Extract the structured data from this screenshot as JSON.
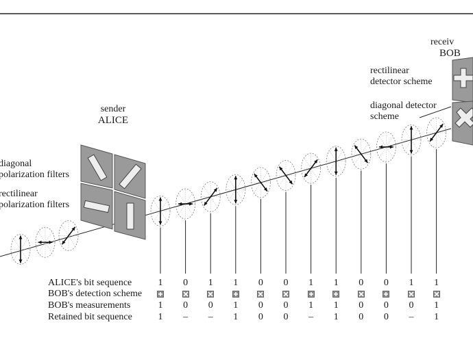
{
  "labels": {
    "sender": "sender",
    "alice": "ALICE",
    "receiver": "receiv",
    "bob": "BOB",
    "diag_filters_1": "diagonal",
    "diag_filters_2": "polarization filters",
    "rect_filters_1": "rectilinear",
    "rect_filters_2": "polarization filters",
    "rect_det_1": "rectilinear",
    "rect_det_2": "detector scheme",
    "diag_det_1": "diagonal detector",
    "diag_det_2": "scheme"
  },
  "table": {
    "row_labels": [
      "ALICE's bit sequence",
      "BOB's detection scheme",
      "BOB's measurements",
      "Retained bit sequence"
    ],
    "alice_bits": [
      "1",
      "0",
      "1",
      "1",
      "0",
      "0",
      "1",
      "1",
      "0",
      "0",
      "1",
      "1"
    ],
    "bob_schemes": [
      "rect",
      "diag",
      "diag",
      "rect",
      "diag",
      "diag",
      "rect",
      "rect",
      "diag",
      "rect",
      "diag",
      "diag"
    ],
    "bob_measurements": [
      "1",
      "0",
      "0",
      "1",
      "0",
      "0",
      "1",
      "1",
      "0",
      "0",
      "0",
      "1"
    ],
    "retained_bits": [
      "1",
      "–",
      "–",
      "1",
      "0",
      "0",
      "–",
      "1",
      "0",
      "0",
      "–",
      "1"
    ]
  },
  "photons": {
    "left_polarizations": [
      "vertical",
      "horizontal",
      "diag-up"
    ],
    "polarizations": [
      "vertical",
      "horizontal",
      "diag-up",
      "vertical",
      "diag-down",
      "diag-down",
      "diag-up",
      "vertical",
      "diag-down",
      "horizontal",
      "vertical",
      "diag-up"
    ]
  }
}
